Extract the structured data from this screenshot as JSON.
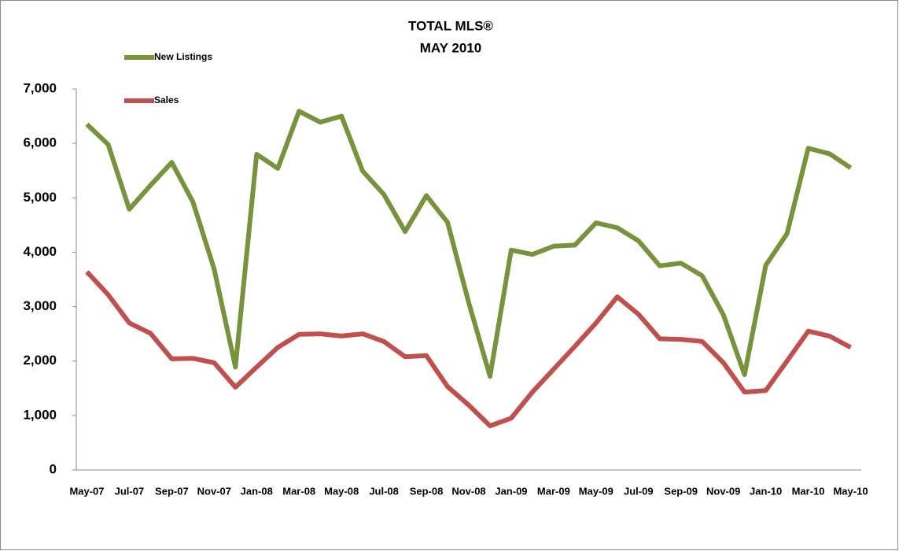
{
  "chart_data": {
    "type": "line",
    "title": "TOTAL MLS®",
    "subtitle": "MAY 2010",
    "categories": [
      "May-07",
      null,
      "Jul-07",
      null,
      "Sep-07",
      null,
      "Nov-07",
      null,
      "Jan-08",
      null,
      "Mar-08",
      null,
      "May-08",
      null,
      "Jul-08",
      null,
      "Sep-08",
      null,
      "Nov-08",
      null,
      "Jan-09",
      null,
      "Mar-09",
      null,
      "May-09",
      null,
      "Jul-09",
      null,
      "Sep-09",
      null,
      "Nov-09",
      null,
      "Jan-10",
      null,
      "Mar-10",
      null,
      "May-10"
    ],
    "series": [
      {
        "name": "New Listings",
        "color": "#77933c",
        "values": [
          6350,
          5980,
          4790,
          5230,
          5650,
          4920,
          3690,
          1890,
          5800,
          5540,
          6590,
          6390,
          6500,
          5490,
          5060,
          4380,
          5040,
          4550,
          3070,
          1720,
          4040,
          3960,
          4110,
          4130,
          4540,
          4450,
          4210,
          3750,
          3800,
          3570,
          2850,
          1750,
          3760,
          4340,
          5910,
          5810,
          5550
        ]
      },
      {
        "name": "Sales",
        "color": "#c0504d",
        "values": [
          3640,
          3220,
          2700,
          2510,
          2040,
          2050,
          1970,
          1520,
          1890,
          2250,
          2490,
          2500,
          2460,
          2500,
          2360,
          2080,
          2100,
          1530,
          1190,
          810,
          950,
          1430,
          1850,
          2270,
          2700,
          3180,
          2860,
          2410,
          2400,
          2360,
          1970,
          1430,
          1460,
          2000,
          2550,
          2460,
          2250
        ]
      }
    ],
    "ylim": [
      0,
      7000
    ],
    "yticks": [
      0,
      {
        "value": 1000,
        "label": "1,000"
      },
      {
        "value": 2000,
        "label": "2,000"
      },
      {
        "value": 3000,
        "label": "3,000"
      },
      {
        "value": 4000,
        "label": "4,000"
      },
      {
        "value": 5000,
        "label": "5,000"
      },
      {
        "value": 6000,
        "label": "6,000"
      },
      {
        "value": 7000,
        "label": "7,000"
      }
    ],
    "grid": false,
    "legend": "upper left"
  }
}
